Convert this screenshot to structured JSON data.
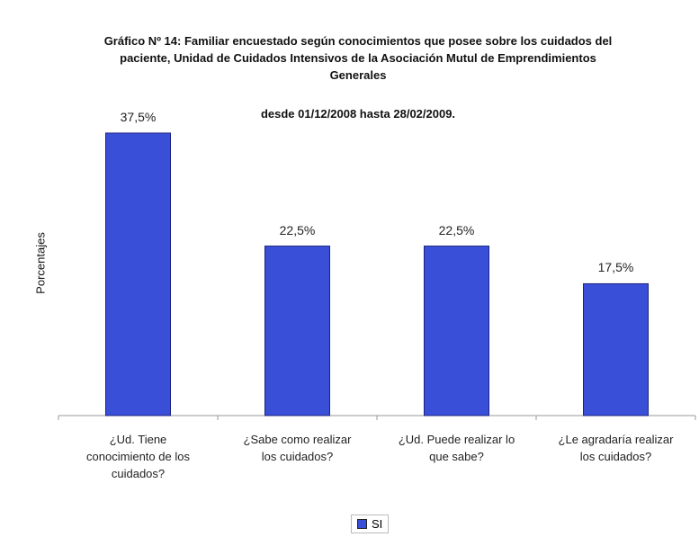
{
  "chart_data": {
    "type": "bar",
    "title": "Gráfico Nº 14: Familiar encuestado según conocimientos que posee sobre los cuidados del paciente, Unidad de Cuidados Intensivos de la Asociación Mutul de Emprendimientos Generales",
    "subtitle": "desde 01/12/2008 hasta 28/02/2009.",
    "y_label": "Porcentajes",
    "categories": [
      "¿Ud. Tiene conocimiento de los cuidados?",
      "¿Sabe como realizar los cuidados?",
      "¿Ud. Puede realizar lo que sabe?",
      "¿Le agradaría realizar los cuidados?"
    ],
    "series": [
      {
        "name": "SI",
        "color": "#3a4fd8",
        "values": [
          37.5,
          22.5,
          22.5,
          17.5
        ],
        "value_labels": [
          "37,5%",
          "22,5%",
          "22,5%",
          "17,5%"
        ]
      }
    ],
    "ylim": [
      0,
      40
    ],
    "legend": "bottom"
  }
}
